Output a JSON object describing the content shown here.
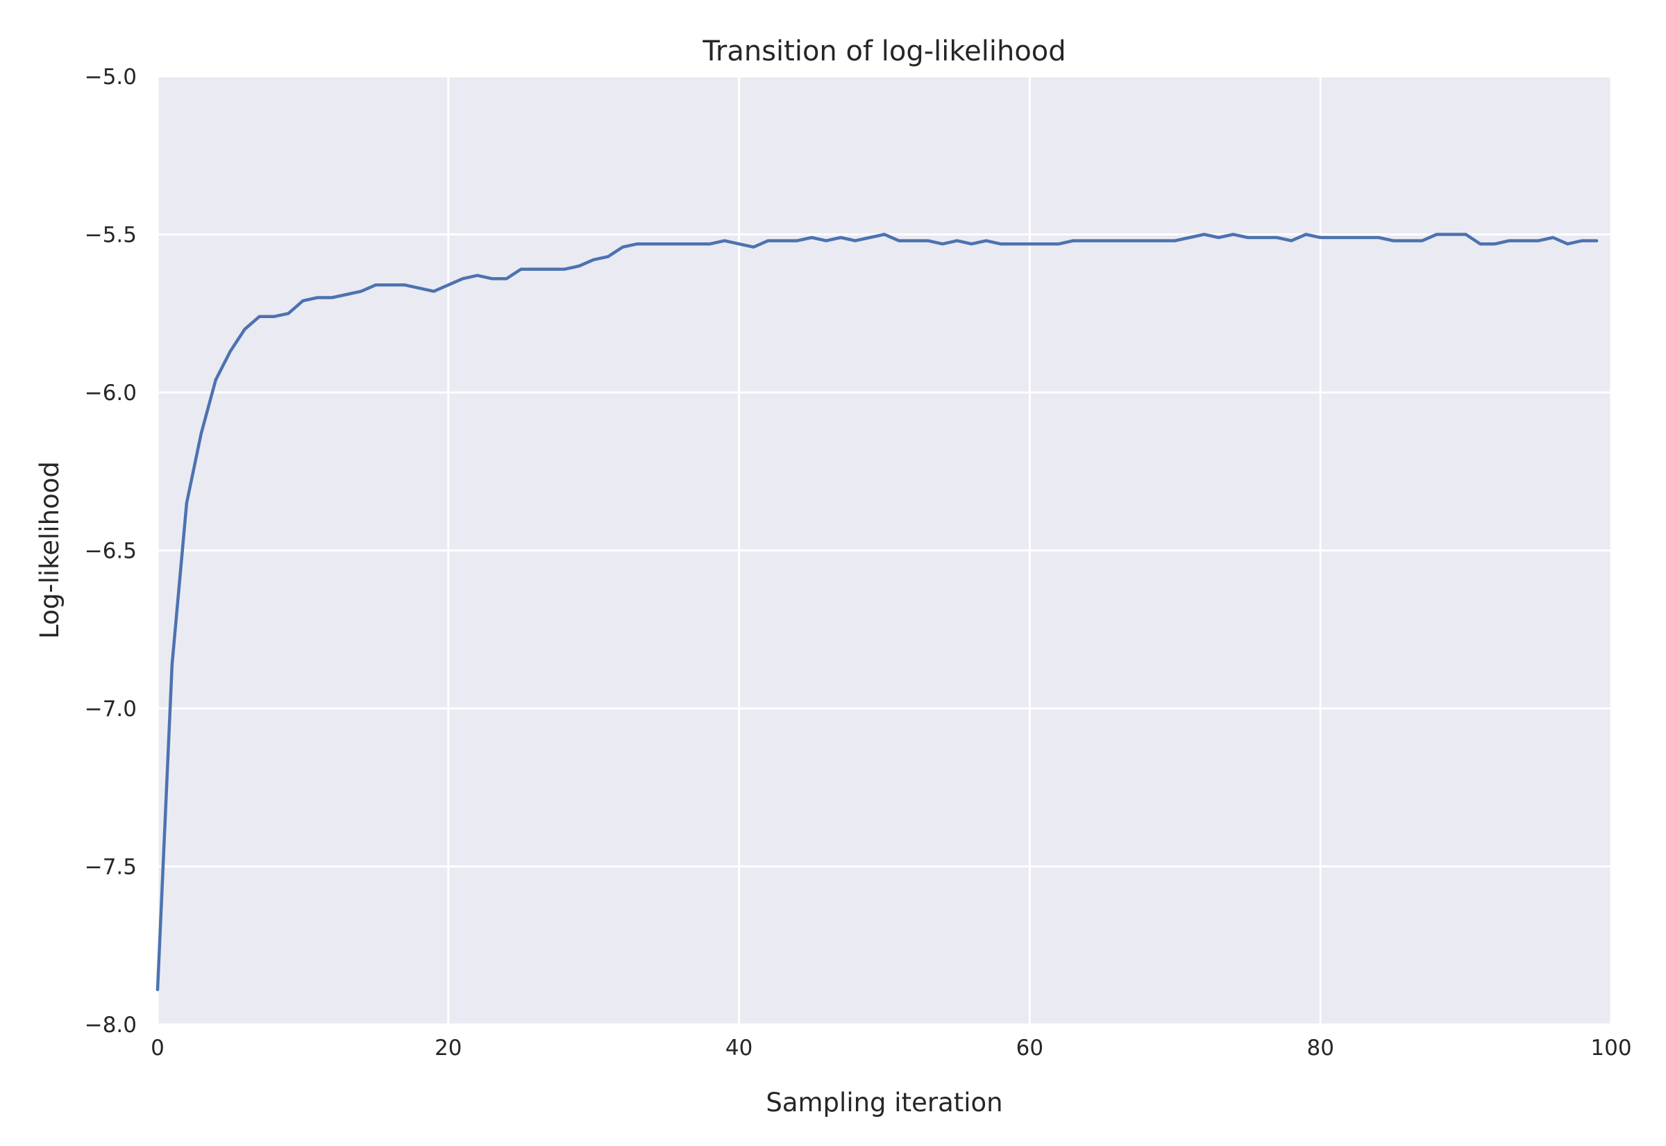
{
  "chart_data": {
    "type": "line",
    "title": "Transition of log-likelihood",
    "xlabel": "Sampling iteration",
    "ylabel": "Log-likelihood",
    "xlim": [
      0,
      100
    ],
    "ylim": [
      -8.0,
      -5.0
    ],
    "xticks": [
      0,
      20,
      40,
      60,
      80,
      100
    ],
    "xtick_labels": [
      "0",
      "20",
      "40",
      "60",
      "80",
      "100"
    ],
    "yticks": [
      -8.0,
      -7.5,
      -7.0,
      -6.5,
      -6.0,
      -5.5,
      -5.0
    ],
    "ytick_labels": [
      "−8.0",
      "−7.5",
      "−7.0",
      "−6.5",
      "−6.0",
      "−5.5",
      "−5.0"
    ],
    "grid": true,
    "colors": {
      "background": "#eaeaf2",
      "grid": "#ffffff",
      "line": "#4c72b0"
    },
    "series": [
      {
        "x": [
          0,
          1,
          2,
          3,
          4,
          5,
          6,
          7,
          8,
          9,
          10,
          11,
          12,
          13,
          14,
          15,
          16,
          17,
          18,
          19,
          20,
          21,
          22,
          23,
          24,
          25,
          26,
          27,
          28,
          29,
          30,
          31,
          32,
          33,
          34,
          35,
          36,
          37,
          38,
          39,
          40,
          41,
          42,
          43,
          44,
          45,
          46,
          47,
          48,
          49,
          50,
          51,
          52,
          53,
          54,
          55,
          56,
          57,
          58,
          59,
          60,
          61,
          62,
          63,
          64,
          65,
          66,
          67,
          68,
          69,
          70,
          71,
          72,
          73,
          74,
          75,
          76,
          77,
          78,
          79,
          80,
          81,
          82,
          83,
          84,
          85,
          86,
          87,
          88,
          89,
          90,
          91,
          92,
          93,
          94,
          95,
          96,
          97,
          98,
          99
        ],
        "values": [
          -7.89,
          -6.86,
          -6.35,
          -6.13,
          -5.96,
          -5.87,
          -5.8,
          -5.76,
          -5.76,
          -5.75,
          -5.71,
          -5.7,
          -5.7,
          -5.69,
          -5.68,
          -5.66,
          -5.66,
          -5.66,
          -5.67,
          -5.68,
          -5.66,
          -5.64,
          -5.63,
          -5.64,
          -5.64,
          -5.61,
          -5.61,
          -5.61,
          -5.61,
          -5.6,
          -5.58,
          -5.57,
          -5.54,
          -5.53,
          -5.53,
          -5.53,
          -5.53,
          -5.53,
          -5.53,
          -5.52,
          -5.53,
          -5.54,
          -5.52,
          -5.52,
          -5.52,
          -5.51,
          -5.52,
          -5.51,
          -5.52,
          -5.51,
          -5.5,
          -5.52,
          -5.52,
          -5.52,
          -5.53,
          -5.52,
          -5.53,
          -5.52,
          -5.53,
          -5.53,
          -5.53,
          -5.53,
          -5.53,
          -5.52,
          -5.52,
          -5.52,
          -5.52,
          -5.52,
          -5.52,
          -5.52,
          -5.52,
          -5.51,
          -5.5,
          -5.51,
          -5.5,
          -5.51,
          -5.51,
          -5.51,
          -5.52,
          -5.5,
          -5.51,
          -5.51,
          -5.51,
          -5.51,
          -5.51,
          -5.52,
          -5.52,
          -5.52,
          -5.5,
          -5.5,
          -5.5,
          -5.53,
          -5.53,
          -5.52,
          -5.52,
          -5.52,
          -5.51,
          -5.53,
          -5.52,
          -5.52
        ]
      }
    ]
  }
}
